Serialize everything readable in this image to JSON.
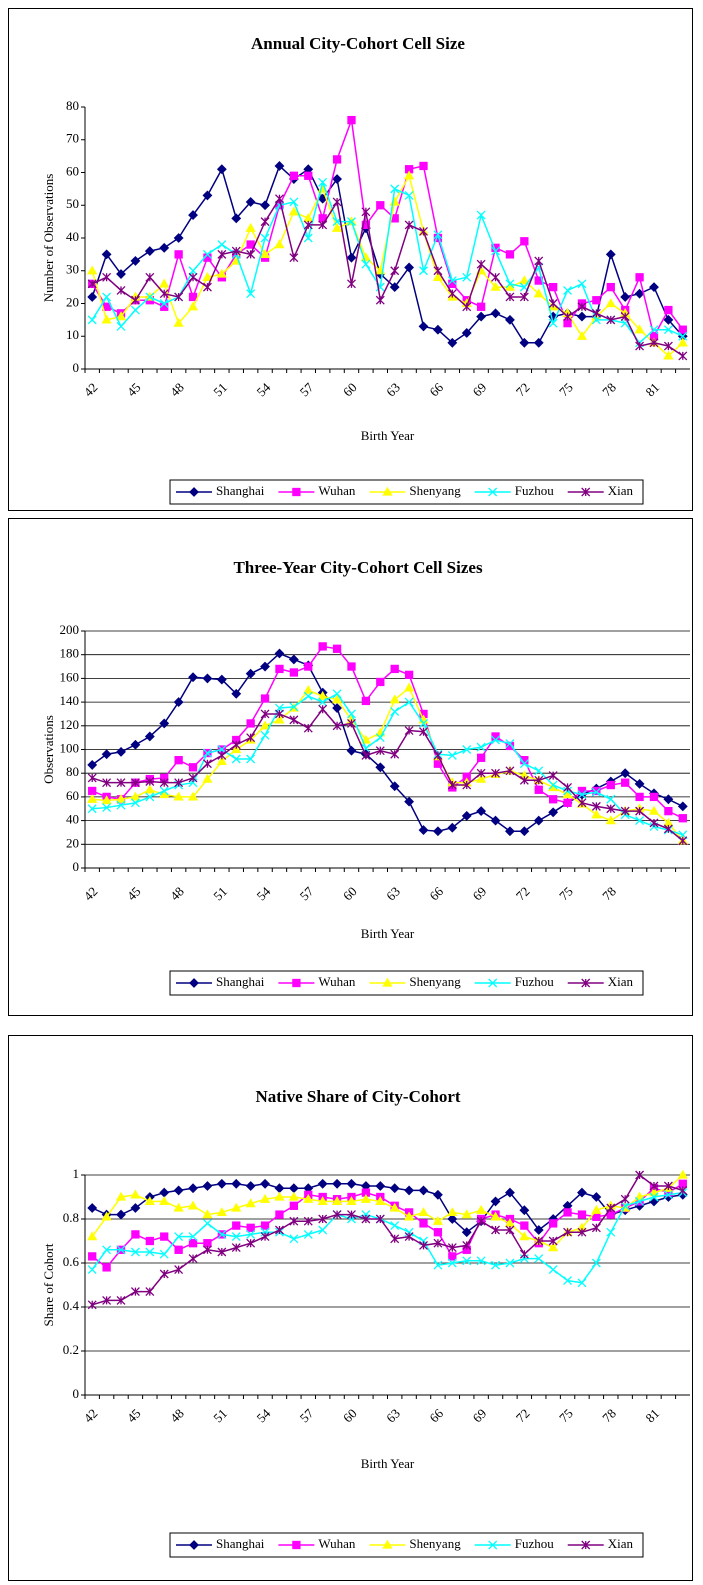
{
  "chart_data": [
    {
      "type": "line",
      "title": "Annual City-Cohort Cell Size",
      "x_label": "Birth Year",
      "y_label": "Number of Observations",
      "categories": [
        "42",
        null,
        null,
        "45",
        null,
        null,
        "48",
        null,
        null,
        "51",
        null,
        null,
        "54",
        null,
        null,
        "57",
        null,
        null,
        "60",
        null,
        null,
        "63",
        null,
        null,
        "66",
        null,
        null,
        "69",
        null,
        null,
        "72",
        null,
        null,
        "75",
        null,
        null,
        "78",
        null,
        null,
        "81",
        null,
        null
      ],
      "ylim": [
        0,
        80
      ],
      "yticks": [
        0,
        10,
        20,
        30,
        40,
        50,
        60,
        70,
        80
      ],
      "grid": false,
      "series": [
        {
          "name": "Shanghai",
          "color": "#000080",
          "marker": "diamond",
          "values": [
            22,
            35,
            29,
            33,
            36,
            37,
            40,
            47,
            53,
            61,
            46,
            51,
            50,
            62,
            58,
            61,
            52,
            58,
            34,
            43,
            29,
            25,
            31,
            13,
            12,
            8,
            11,
            16,
            17,
            15,
            8,
            8,
            16,
            17,
            16,
            16,
            35,
            22,
            23,
            25,
            15,
            10
          ]
        },
        {
          "name": "Wuhan",
          "color": "#ff00ff",
          "marker": "square",
          "values": [
            26,
            19,
            17,
            21,
            21,
            19,
            35,
            22,
            34,
            28,
            35,
            38,
            34,
            50,
            59,
            59,
            46,
            64,
            76,
            44,
            50,
            46,
            61,
            62,
            40,
            26,
            21,
            19,
            37,
            35,
            39,
            27,
            25,
            14,
            20,
            21,
            25,
            18,
            28,
            10,
            18,
            12
          ]
        },
        {
          "name": "Shenyang",
          "color": "#ffff00",
          "marker": "triangle",
          "values": [
            30,
            15,
            16,
            22,
            22,
            26,
            14,
            19,
            28,
            29,
            33,
            43,
            35,
            38,
            48,
            46,
            55,
            43,
            45,
            34,
            30,
            51,
            59,
            42,
            28,
            22,
            20,
            30,
            25,
            25,
            27,
            23,
            19,
            17,
            10,
            16,
            20,
            17,
            12,
            8,
            4,
            8
          ]
        },
        {
          "name": "Fuzhou",
          "color": "#00ffff",
          "marker": "x",
          "values": [
            15,
            22,
            13,
            18,
            22,
            20,
            22,
            30,
            35,
            38,
            35,
            23,
            40,
            50,
            51,
            40,
            57,
            45,
            45,
            32,
            25,
            55,
            53,
            30,
            41,
            27,
            28,
            47,
            36,
            26,
            25,
            31,
            14,
            24,
            26,
            15,
            15,
            14,
            8,
            12,
            12,
            10
          ]
        },
        {
          "name": "Xian",
          "color": "#800080",
          "marker": "star",
          "values": [
            26,
            28,
            24,
            21,
            28,
            23,
            22,
            28,
            25,
            35,
            36,
            35,
            45,
            52,
            34,
            44,
            44,
            51,
            26,
            48,
            21,
            30,
            44,
            42,
            30,
            23,
            19,
            32,
            28,
            22,
            22,
            33,
            20,
            16,
            19,
            17,
            15,
            16,
            7,
            8,
            7,
            4
          ]
        }
      ]
    },
    {
      "type": "line",
      "title": "Three-Year City-Cohort Cell Sizes",
      "x_label": "Birth Year",
      "y_label": "Observations",
      "categories": [
        "42",
        null,
        null,
        "45",
        null,
        null,
        "48",
        null,
        null,
        "51",
        null,
        null,
        "54",
        null,
        null,
        "57",
        null,
        null,
        "60",
        null,
        null,
        "63",
        null,
        null,
        "66",
        null,
        null,
        "69",
        null,
        null,
        "72",
        null,
        null,
        "75",
        null,
        null,
        "78",
        null,
        null,
        null,
        null,
        null
      ],
      "ylim": [
        0,
        200
      ],
      "yticks": [
        0,
        20,
        40,
        60,
        80,
        100,
        120,
        140,
        160,
        180,
        200
      ],
      "grid": true,
      "series": [
        {
          "name": "Shanghai",
          "color": "#000080",
          "marker": "diamond",
          "values": [
            87,
            96,
            98,
            104,
            111,
            122,
            140,
            161,
            160,
            159,
            147,
            164,
            170,
            181,
            176,
            171,
            148,
            135,
            99,
            96,
            85,
            69,
            56,
            32,
            31,
            34,
            44,
            48,
            40,
            31,
            31,
            40,
            47,
            55,
            62,
            67,
            73,
            80,
            71,
            63,
            58,
            52
          ]
        },
        {
          "name": "Wuhan",
          "color": "#ff00ff",
          "marker": "square",
          "values": [
            65,
            60,
            58,
            72,
            75,
            76,
            91,
            85,
            97,
            100,
            108,
            122,
            143,
            168,
            165,
            170,
            187,
            185,
            170,
            141,
            157,
            168,
            163,
            130,
            88,
            68,
            77,
            93,
            111,
            103,
            91,
            66,
            58,
            55,
            65,
            65,
            70,
            72,
            60,
            60,
            48,
            42
          ]
        },
        {
          "name": "Shenyang",
          "color": "#ffff00",
          "marker": "triangle",
          "values": [
            58,
            57,
            58,
            60,
            66,
            62,
            60,
            60,
            75,
            90,
            100,
            108,
            120,
            125,
            135,
            150,
            145,
            142,
            125,
            108,
            114,
            142,
            152,
            125,
            94,
            72,
            72,
            75,
            79,
            82,
            78,
            74,
            68,
            62,
            54,
            45,
            40,
            48,
            50,
            48,
            38,
            23
          ]
        },
        {
          "name": "Fuzhou",
          "color": "#00ffff",
          "marker": "x",
          "values": [
            50,
            51,
            53,
            55,
            60,
            65,
            70,
            72,
            97,
            100,
            92,
            92,
            112,
            135,
            136,
            145,
            140,
            147,
            130,
            101,
            110,
            132,
            140,
            122,
            96,
            95,
            100,
            102,
            108,
            105,
            88,
            82,
            70,
            65,
            62,
            64,
            58,
            45,
            40,
            35,
            32,
            28
          ]
        },
        {
          "name": "Xian",
          "color": "#800080",
          "marker": "star",
          "values": [
            76,
            72,
            72,
            72,
            73,
            72,
            72,
            76,
            88,
            95,
            104,
            110,
            130,
            130,
            125,
            118,
            134,
            120,
            122,
            95,
            99,
            96,
            116,
            115,
            95,
            70,
            70,
            80,
            80,
            82,
            74,
            74,
            78,
            68,
            55,
            52,
            50,
            48,
            48,
            38,
            33,
            23
          ]
        }
      ]
    },
    {
      "type": "line",
      "title": "Native Share of City-Cohort",
      "x_label": "Birth Year",
      "y_label": "Share of Cohort",
      "categories": [
        "42",
        null,
        null,
        "45",
        null,
        null,
        "48",
        null,
        null,
        "51",
        null,
        null,
        "54",
        null,
        null,
        "57",
        null,
        null,
        "60",
        null,
        null,
        "63",
        null,
        null,
        "66",
        null,
        null,
        "69",
        null,
        null,
        "72",
        null,
        null,
        "75",
        null,
        null,
        "78",
        null,
        null,
        "81",
        null,
        null
      ],
      "ylim": [
        0,
        1
      ],
      "yticks": [
        0,
        0.2,
        0.4,
        0.6,
        0.8,
        1
      ],
      "grid": true,
      "series": [
        {
          "name": "Shanghai",
          "color": "#000080",
          "marker": "diamond",
          "values": [
            0.85,
            0.82,
            0.82,
            0.85,
            0.9,
            0.92,
            0.93,
            0.94,
            0.95,
            0.96,
            0.96,
            0.95,
            0.96,
            0.94,
            0.94,
            0.94,
            0.96,
            0.96,
            0.96,
            0.95,
            0.95,
            0.94,
            0.93,
            0.93,
            0.91,
            0.8,
            0.74,
            0.79,
            0.88,
            0.92,
            0.84,
            0.75,
            0.8,
            0.86,
            0.92,
            0.9,
            0.82,
            0.84,
            0.86,
            0.88,
            0.9,
            0.91
          ]
        },
        {
          "name": "Wuhan",
          "color": "#ff00ff",
          "marker": "square",
          "values": [
            0.63,
            0.58,
            0.66,
            0.73,
            0.7,
            0.72,
            0.66,
            0.69,
            0.69,
            0.73,
            0.77,
            0.76,
            0.77,
            0.82,
            0.86,
            0.91,
            0.9,
            0.89,
            0.9,
            0.92,
            0.9,
            0.86,
            0.83,
            0.78,
            0.74,
            0.63,
            0.66,
            0.8,
            0.82,
            0.8,
            0.77,
            0.69,
            0.78,
            0.83,
            0.82,
            0.81,
            0.82,
            0.85,
            0.88,
            0.94,
            0.92,
            0.96
          ]
        },
        {
          "name": "Shenyang",
          "color": "#ffff00",
          "marker": "triangle",
          "values": [
            0.72,
            0.81,
            0.9,
            0.91,
            0.88,
            0.88,
            0.85,
            0.86,
            0.82,
            0.83,
            0.85,
            0.87,
            0.89,
            0.9,
            0.9,
            0.89,
            0.88,
            0.88,
            0.88,
            0.89,
            0.88,
            0.85,
            0.81,
            0.83,
            0.79,
            0.83,
            0.82,
            0.84,
            0.81,
            0.78,
            0.72,
            0.7,
            0.67,
            0.74,
            0.76,
            0.84,
            0.86,
            0.85,
            0.9,
            0.92,
            0.94,
            1.0
          ]
        },
        {
          "name": "Fuzhou",
          "color": "#00ffff",
          "marker": "x",
          "values": [
            0.57,
            0.66,
            0.66,
            0.65,
            0.65,
            0.64,
            0.72,
            0.72,
            0.78,
            0.73,
            0.72,
            0.73,
            0.74,
            0.74,
            0.71,
            0.73,
            0.75,
            0.82,
            0.8,
            0.82,
            0.8,
            0.77,
            0.74,
            0.7,
            0.59,
            0.6,
            0.61,
            0.61,
            0.59,
            0.6,
            0.62,
            0.62,
            0.57,
            0.52,
            0.51,
            0.6,
            0.74,
            0.86,
            0.88,
            0.9,
            0.91,
            0.92
          ]
        },
        {
          "name": "Xian",
          "color": "#800080",
          "marker": "star",
          "values": [
            0.41,
            0.43,
            0.43,
            0.47,
            0.47,
            0.55,
            0.57,
            0.62,
            0.66,
            0.65,
            0.67,
            0.69,
            0.72,
            0.75,
            0.79,
            0.79,
            0.8,
            0.82,
            0.82,
            0.8,
            0.8,
            0.71,
            0.72,
            0.68,
            0.69,
            0.67,
            0.68,
            0.79,
            0.75,
            0.75,
            0.64,
            0.7,
            0.7,
            0.74,
            0.74,
            0.76,
            0.85,
            0.89,
            1.0,
            0.95,
            0.95,
            0.93
          ]
        }
      ]
    }
  ]
}
